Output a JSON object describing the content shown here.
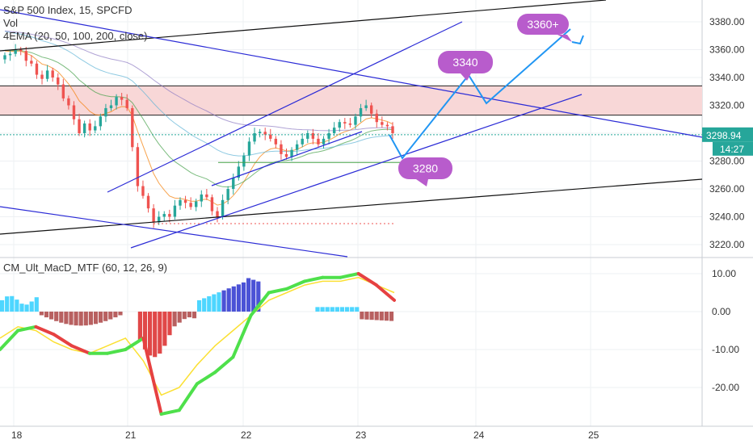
{
  "header": {
    "symbol_line": "S&P 500 Index, 15, SPCFD",
    "vol_label": "Vol",
    "ema_label": "4EMA (20, 50, 100, 200, close)"
  },
  "macd": {
    "label": "CM_Ult_MacD_MTF (60, 12, 26, 9)"
  },
  "badges": {
    "price": "3298.94",
    "countdown": "14:27"
  },
  "callouts": [
    {
      "text": "3360+"
    },
    {
      "text": "3340"
    },
    {
      "text": "3280"
    }
  ],
  "colors": {
    "bull": "#26a69a",
    "bear": "#ef5350",
    "resistance_zone": "#f8d7d7",
    "projection": "#2196f3",
    "channel": "#2b2bd6",
    "callout": "#b85ccc"
  },
  "chart_data": [
    {
      "type": "candlestick",
      "title": "S&P 500 Index, 15, SPCFD",
      "price_axis_ticks": [
        "3380.00",
        "3360.00",
        "3340.00",
        "3320.00",
        "3300.00",
        "3280.00",
        "3260.00",
        "3240.00",
        "3220.00"
      ],
      "time_axis_ticks": [
        "18",
        "21",
        "22",
        "23",
        "24",
        "25"
      ],
      "ylim": [
        3211,
        3392
      ],
      "resistance_zone": [
        3313,
        3334
      ],
      "support_level": 3279,
      "last_price": 3298.94,
      "candles_close": [
        3356,
        3357,
        3360,
        3359,
        3352,
        3350,
        3342,
        3339,
        3345,
        3340,
        3335,
        3325,
        3320,
        3310,
        3300,
        3307,
        3302,
        3305,
        3312,
        3318,
        3320,
        3326,
        3324,
        3318,
        3290,
        3262,
        3255,
        3246,
        3236,
        3240,
        3242,
        3240,
        3248,
        3252,
        3250,
        3247,
        3251,
        3256,
        3254,
        3244,
        3240,
        3252,
        3260,
        3268,
        3276,
        3284,
        3294,
        3300,
        3301,
        3299,
        3296,
        3292,
        3285,
        3283,
        3288,
        3292,
        3296,
        3300,
        3296,
        3292,
        3296,
        3300,
        3304,
        3308,
        3307,
        3306,
        3312,
        3318,
        3320,
        3314,
        3308,
        3306,
        3305,
        3300
      ],
      "projection_path": [
        {
          "x": "23",
          "y": 3300
        },
        {
          "x": "23",
          "y": 3281
        },
        {
          "x": "24",
          "y": 3340
        },
        {
          "x": "24",
          "y": 3321
        },
        {
          "x": "25",
          "y": 3373
        }
      ]
    },
    {
      "type": "histogram",
      "title": "CM_Ult_MacD_MTF (60, 12, 26, 9)",
      "axis_ticks": [
        "10.00",
        "0.00",
        "-10.00",
        "-20.00"
      ],
      "ylim": [
        -31,
        12
      ],
      "macd_line_points": [
        -10,
        -5,
        -4,
        -6,
        -9,
        -11,
        -11,
        -10,
        -7,
        -27,
        -26,
        -19,
        -16,
        -12,
        -1,
        5,
        6,
        8,
        9,
        9,
        10,
        7,
        3
      ],
      "signal_line_points": [
        -7,
        -4,
        -5,
        -8,
        -10,
        -11,
        -9,
        -7,
        -13,
        -22,
        -20,
        -14,
        -9,
        -5,
        -1,
        3,
        5,
        7,
        8,
        8,
        9,
        7,
        5
      ]
    }
  ]
}
